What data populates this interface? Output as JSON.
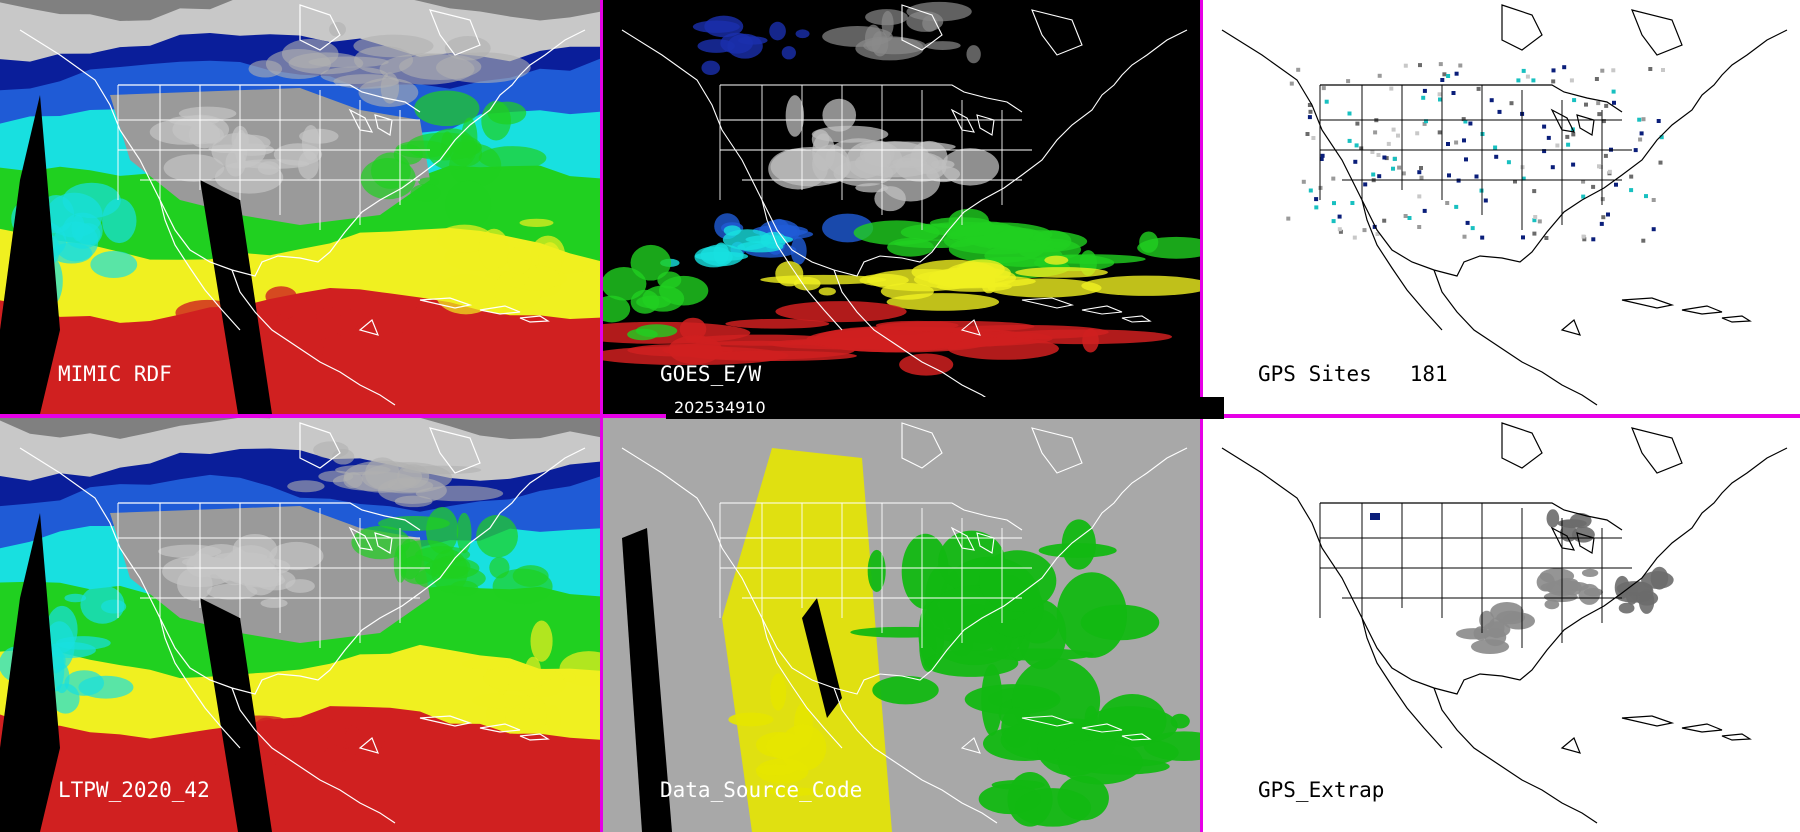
{
  "panels": [
    {
      "id": "mimic",
      "label": "MIMIC RDF",
      "label_color": "#ffffff",
      "style": "pw"
    },
    {
      "id": "goes",
      "label": "GOES_E/W",
      "label_color": "#ffffff",
      "style": "goes"
    },
    {
      "id": "gps",
      "label": "GPS Sites",
      "count": "181",
      "label_color": "#000000",
      "style": "gps"
    },
    {
      "id": "ltpw",
      "label": "LTPW_2020_42",
      "label_color": "#ffffff",
      "style": "pw"
    },
    {
      "id": "dsc",
      "label": "Data_Source_Code",
      "label_color": "#ffffff",
      "style": "dsc"
    },
    {
      "id": "gpsx",
      "label": "GPS_Extrap",
      "label_color": "#000000",
      "style": "gpsx"
    }
  ],
  "timestamp": "202534910",
  "colors": {
    "divider": "#e600e6",
    "pw_scale": [
      "#808080",
      "#c8c8c8",
      "#0a1e9a",
      "#1f5bd6",
      "#18e0e0",
      "#20d020",
      "#f0f020",
      "#d02020"
    ],
    "dsc_gray": "#a8a8a8",
    "dsc_green": "#12b812",
    "dsc_yellow": "#e6e600"
  }
}
